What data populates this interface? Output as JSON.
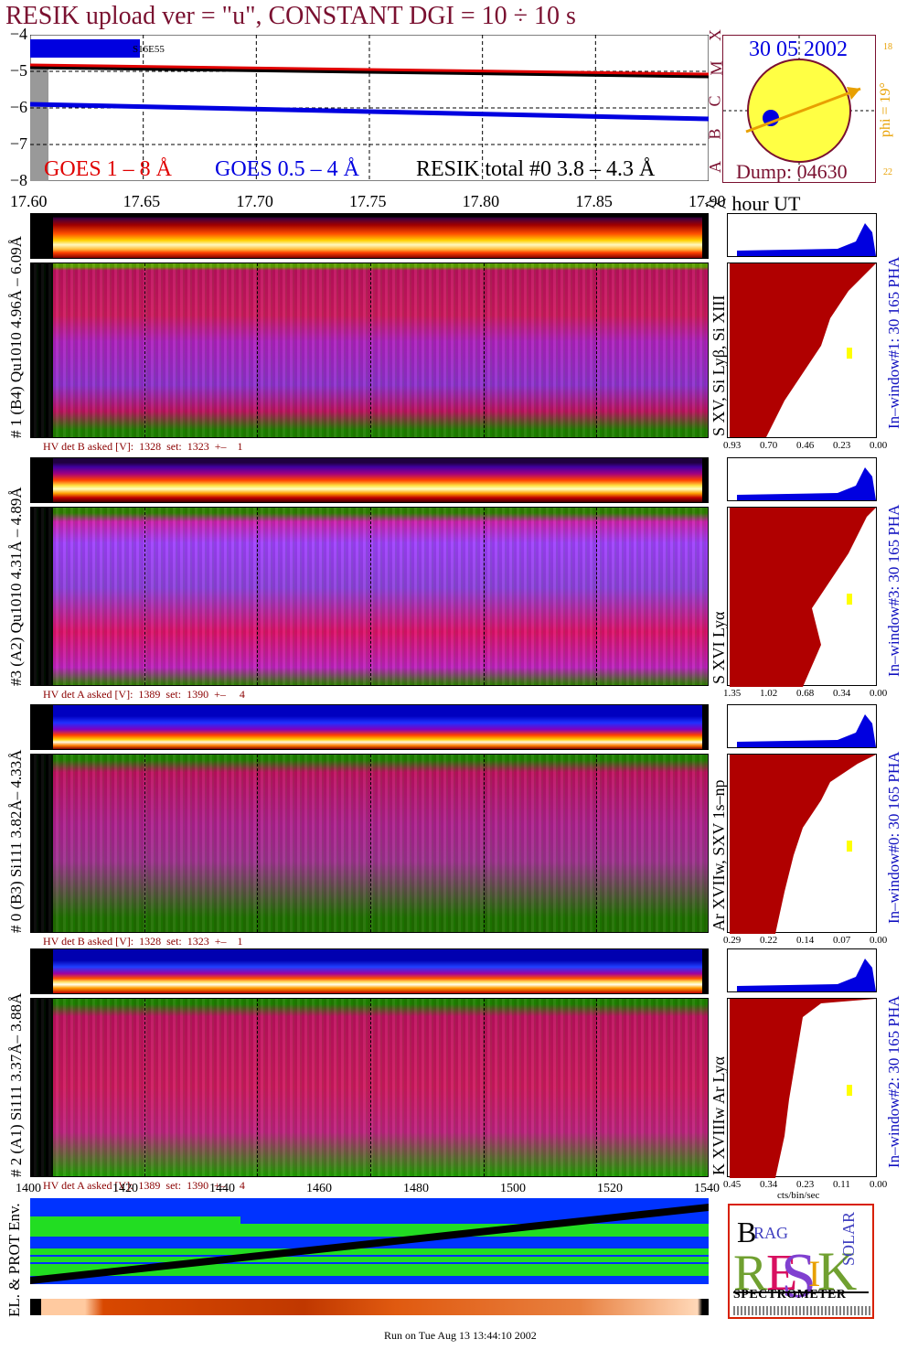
{
  "title": "RESIK upload ver = \"u\", CONSTANT  DGI =  10 ÷  10 s",
  "date": "30 05 2002",
  "dump": "Dump: 04630",
  "phi": "phi = 19°",
  "phi_side_top": "18",
  "phi_side_bottom": "22",
  "goes_classes": [
    "X",
    "M",
    "C",
    "B",
    "A"
  ],
  "legend": {
    "goes_red": "GOES 1 – 8 Å",
    "goes_blue": "GOES 0.5 – 4 Å",
    "resik": "RESIK total #0  3.8 – 4.3 Å"
  },
  "top_annotation": "S16E55",
  "hour_suffix": "<< hour UT",
  "footer": "Run on Tue Aug 13 13:44:10 2002",
  "colors": {
    "goes_red": "#e00000",
    "goes_blue": "#0000e0",
    "title": "#7a1030",
    "pha": "#b00000",
    "right_label": "#1010c0"
  },
  "chart_data": [
    {
      "type": "line",
      "title": "RESIK upload ver = \"u\", CONSTANT  DGI =  10 ÷  10 s",
      "xlabel": "hour UT",
      "ylim": [
        -8,
        -4
      ],
      "xlim": [
        17.6,
        17.9
      ],
      "yticks": [
        "−4",
        "−5",
        "−6",
        "−7",
        "−8"
      ],
      "xticks": [
        "17.60",
        "17.65",
        "17.70",
        "17.75",
        "17.80",
        "17.85",
        "17.90"
      ],
      "series": [
        {
          "name": "GOES 1 – 8 Å",
          "x": [
            17.6,
            17.9
          ],
          "y": [
            -4.85,
            -5.1
          ]
        },
        {
          "name": "GOES 0.5 – 4 Å",
          "x": [
            17.6,
            17.9
          ],
          "y": [
            -5.9,
            -6.3
          ]
        },
        {
          "name": "RESIK total #0  3.8 – 4.3 Å",
          "x": [
            17.6,
            17.9
          ],
          "y": [
            -4.9,
            -5.15
          ]
        }
      ]
    },
    {
      "type": "heatmap",
      "xlabel": "",
      "xlim": [
        1400,
        1540
      ],
      "xticks": [
        "1400",
        "1420",
        "1440",
        "1460",
        "1480",
        "1500",
        "1520",
        "1540"
      ]
    }
  ],
  "channels": [
    {
      "left_label": "# 1 (B4) Qu1010 4.96Å – 6.09Å",
      "line_label": "S XV, Si Lyβ, Si XIII",
      "hv": "HV det B asked [V]:  1328  set:  1323  +–    1",
      "pha_label": "In–window#1:   30 165  PHA",
      "pha_ticks": [
        "0.93",
        "0.70",
        "0.46",
        "0.23",
        "0.00"
      ]
    },
    {
      "left_label": "#3 (A2) Qu1010  4.31Å – 4.89Å",
      "line_label": "S XVI Lyα",
      "hv": "HV det A asked [V]:  1389  set:  1390  +–     4",
      "pha_label": "In–window#3:   30 165  PHA",
      "pha_ticks": [
        "1.35",
        "1.02",
        "0.68",
        "0.34",
        "0.00"
      ]
    },
    {
      "left_label": "# 0 (B3) Si111  3.82Å– 4.33Å",
      "line_label": "Ar XVIIw,  SXV 1s–np",
      "hv": "HV det B asked [V]:  1328  set:  1323  +–    1",
      "pha_label": "In–window#0:   30 165  PHA",
      "pha_ticks": [
        "0.29",
        "0.22",
        "0.14",
        "0.07",
        "0.00"
      ]
    },
    {
      "left_label": "# 2 (A1) Si111  3.37Å–  3.88Å",
      "line_label": "K XVIIIw    Ar Lyα",
      "hv": "HV det A asked [V]:  1389  set:  1390  +–     4",
      "pha_label": "In–window#2:   30 165  PHA",
      "pha_ticks": [
        "0.45",
        "0.34",
        "0.23",
        "0.11",
        "0.00"
      ],
      "pha_xlabel": "cts/bin/sec"
    }
  ],
  "env_label": "EL. & PROT Env.",
  "logo": {
    "spectrometer": "SPECTROMETER"
  }
}
